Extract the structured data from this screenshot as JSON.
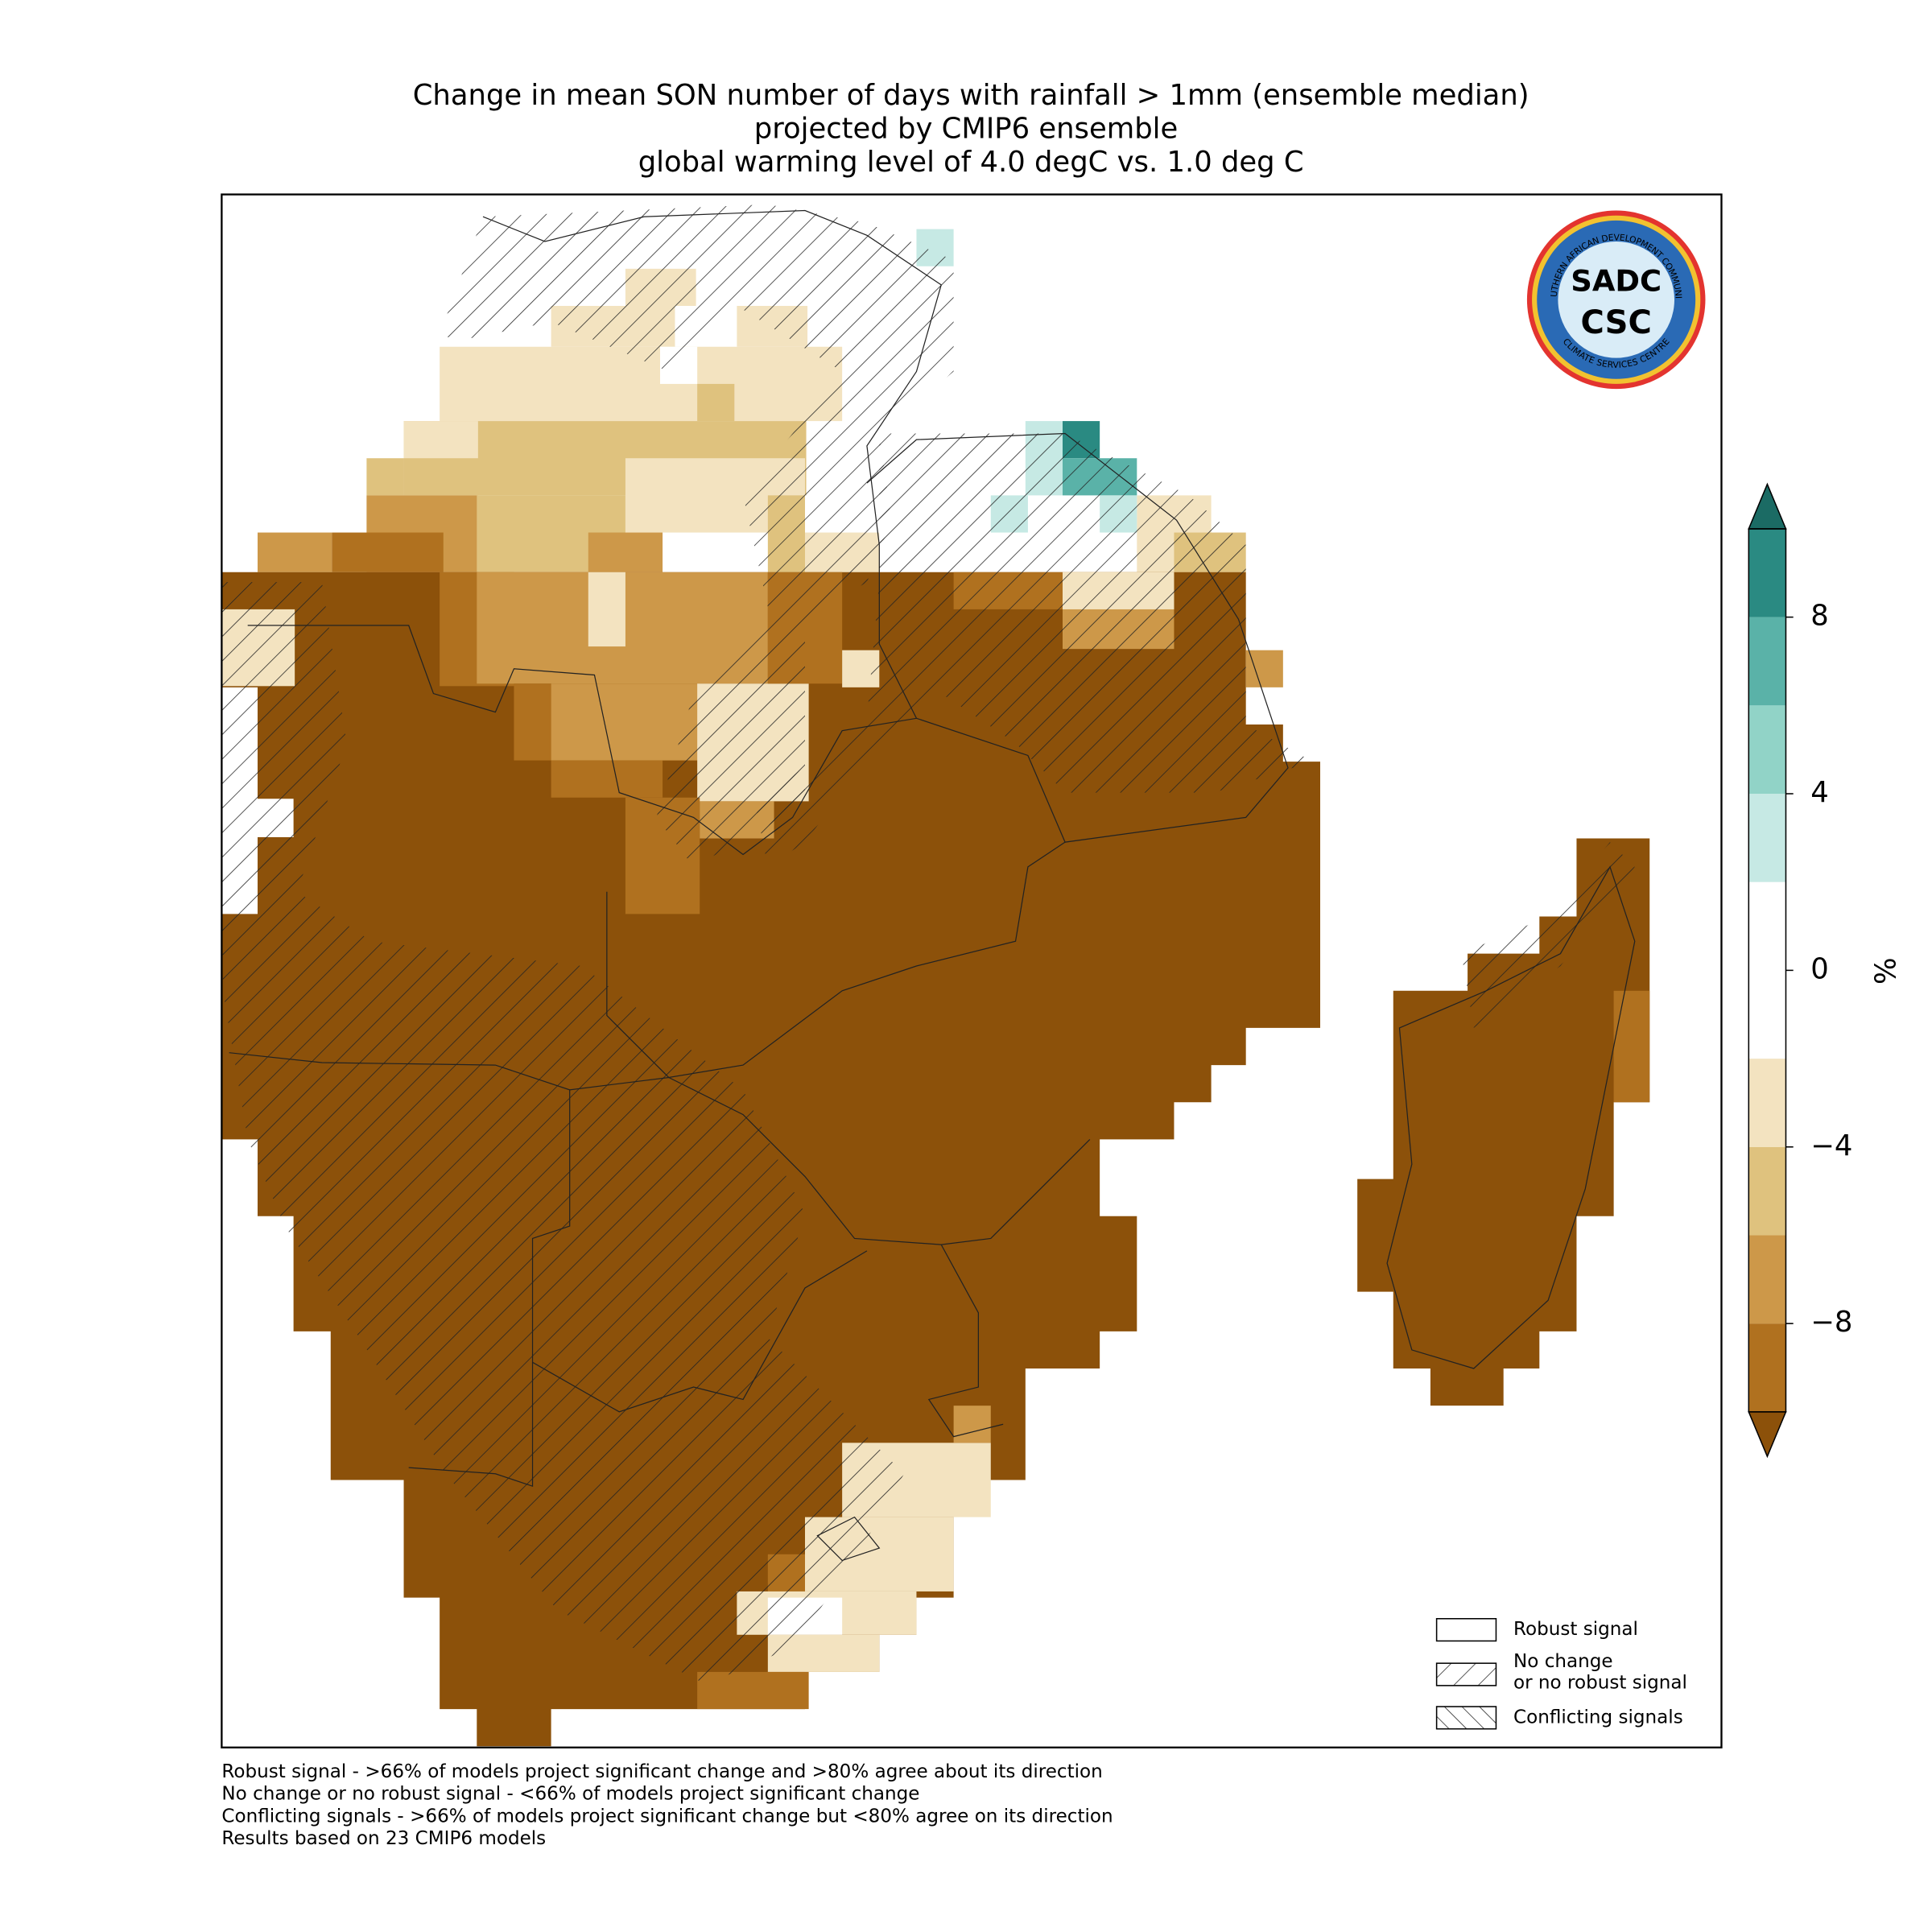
{
  "header": {
    "title": [
      "Change in mean SON number of days with rainfall > 1mm (ensemble median)",
      "projected by CMIP6 ensemble",
      "global warming level of 4.0 degC vs. 1.0 deg C"
    ]
  },
  "logo": {
    "top_text": "SOUTHERN AFRICAN DEVELOPMENT COMMUNITY",
    "bottom_text": "CLIMATE SERVICES CENTRE",
    "upper": "SADC",
    "lower": "CSC"
  },
  "colorbar": {
    "label": "%",
    "range": [
      -10,
      10
    ],
    "boundaries": [
      -10,
      -8,
      -6,
      -4,
      -2,
      2,
      4,
      6,
      8,
      10
    ],
    "colors": [
      "#b0711f",
      "#cd9849",
      "#dfc27e",
      "#f3e3c0",
      "#ffffff",
      "#c6e9e4",
      "#91d3c7",
      "#5ab2a8",
      "#2a8a82"
    ],
    "extend_colors": [
      "#8c510a",
      "#1b6b64"
    ],
    "ticks": [
      {
        "value": -8,
        "label": "−8"
      },
      {
        "value": -4,
        "label": "−4"
      },
      0,
      4,
      8
    ]
  },
  "legend": [
    {
      "label": [
        "Robust signal"
      ]
    },
    {
      "label": [
        "No change",
        "or no robust signal"
      ]
    },
    {
      "label": [
        "Conflicting signals"
      ]
    }
  ],
  "footnotes": [
    "Robust signal - >66% of models project significant change and >80% agree about its direction",
    "No change or no robust signal - <66% of models project significant change",
    "Conflicting signals - >66% of models project significant change but <80% agree on its direction",
    "Results based on 23 CMIP6 models"
  ]
}
